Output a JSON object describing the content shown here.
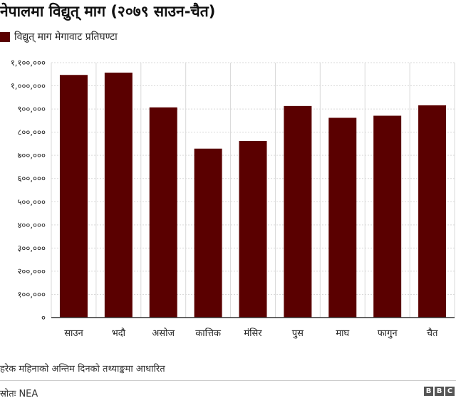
{
  "title": "नेपालमा विद्युत् माग (२०७९ साउन-चैत)",
  "legend": {
    "label": "विद्युत् माग मेगावाट प्रतिघण्टा"
  },
  "note": "हरेक महिनाको अन्तिम दिनको तथ्याङ्कमा आधारित",
  "source": "स्रोतः NEA",
  "logo": [
    "B",
    "B",
    "C"
  ],
  "colors": {
    "bar": "#5a0000",
    "grid": "#d9d9d9",
    "axis": "#333333"
  },
  "chart_data": {
    "type": "bar",
    "title": "नेपालमा विद्युत् माग (२०७९ साउन-चैत)",
    "xlabel": "",
    "ylabel": "",
    "categories": [
      "साउन",
      "भदौ",
      "असोज",
      "कात्तिक",
      "मंसिर",
      "पुस",
      "माघ",
      "फागुन",
      "चैत"
    ],
    "series": [
      {
        "name": "विद्युत् माग मेगावाट प्रतिघण्टा",
        "values": [
          1047000,
          1057000,
          907000,
          729000,
          762000,
          913000,
          862000,
          871000,
          916000
        ]
      }
    ],
    "ylim": [
      0,
      1100000
    ],
    "yticks": [
      0,
      100000,
      200000,
      300000,
      400000,
      500000,
      600000,
      700000,
      800000,
      900000,
      1000000,
      1100000
    ],
    "ytick_labels": [
      "०",
      "१००,०००",
      "२००,०००",
      "३००,०००",
      "४००,०००",
      "५००,०००",
      "६००,०००",
      "७००,०००",
      "८००,०००",
      "९००,०००",
      "१,०००,०००",
      "१,१००,०००"
    ],
    "grid": true,
    "legend_position": "top-left"
  }
}
